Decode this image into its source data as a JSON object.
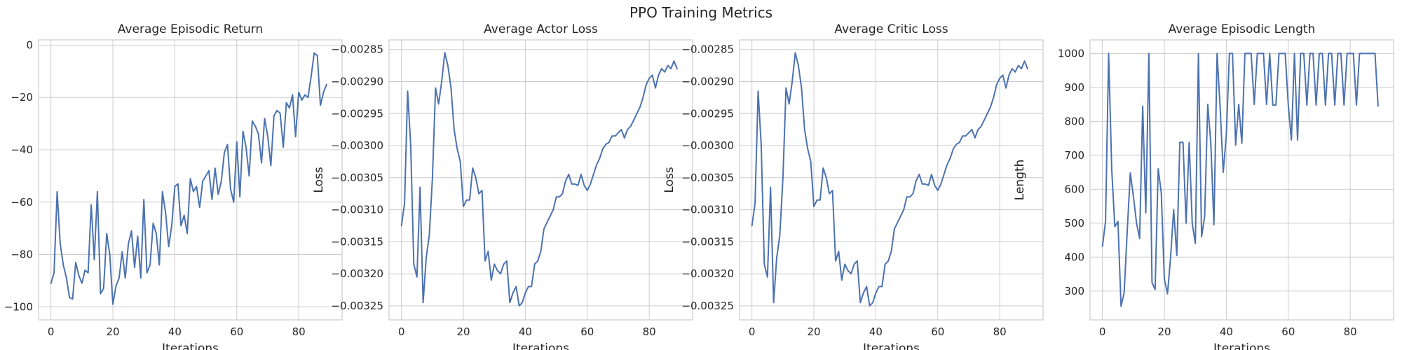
{
  "figure": {
    "title": "PPO Training Metrics"
  },
  "chart_data": [
    {
      "type": "line",
      "title": "Average Episodic Return",
      "xlabel": "Iterations",
      "ylabel": "",
      "xlim": [
        -4,
        94
      ],
      "ylim": [
        -105,
        2
      ],
      "xticks": [
        0,
        20,
        40,
        60,
        80
      ],
      "yticks": [
        0,
        -20,
        -40,
        -60,
        -80,
        -100
      ],
      "grid": true,
      "series": [
        {
          "name": "",
          "color": "#4c72b0",
          "x": [
            0,
            1,
            2,
            3,
            4,
            5,
            6,
            7,
            8,
            9,
            10,
            11,
            12,
            13,
            14,
            15,
            16,
            17,
            18,
            19,
            20,
            21,
            22,
            23,
            24,
            25,
            26,
            27,
            28,
            29,
            30,
            31,
            32,
            33,
            34,
            35,
            36,
            37,
            38,
            39,
            40,
            41,
            42,
            43,
            44,
            45,
            46,
            47,
            48,
            49,
            50,
            51,
            52,
            53,
            54,
            55,
            56,
            57,
            58,
            59,
            60,
            61,
            62,
            63,
            64,
            65,
            66,
            67,
            68,
            69,
            70,
            71,
            72,
            73,
            74,
            75,
            76,
            77,
            78,
            79,
            80,
            81,
            82,
            83,
            84,
            85,
            86,
            87,
            88,
            89
          ],
          "y": [
            -91,
            -87,
            -56,
            -76,
            -84,
            -89,
            -96.5,
            -97,
            -83,
            -88,
            -91,
            -86,
            -87,
            -61,
            -82,
            -56,
            -95,
            -93,
            -72,
            -80,
            -99,
            -92,
            -89,
            -79,
            -89,
            -76,
            -71,
            -85,
            -73,
            -89,
            -59,
            -87,
            -84,
            -68,
            -72,
            -84,
            -56,
            -64,
            -77,
            -69,
            -54,
            -53,
            -69,
            -65,
            -72,
            -51,
            -56,
            -54,
            -62,
            -52,
            -50,
            -48,
            -59,
            -47,
            -57,
            -52,
            -41,
            -38,
            -55,
            -60,
            -37,
            -58,
            -33,
            -39,
            -50,
            -29,
            -31,
            -34,
            -45,
            -28,
            -35,
            -46,
            -27,
            -25,
            -26,
            -39,
            -22,
            -24,
            -19,
            -35,
            -18,
            -21,
            -19,
            -20,
            -12,
            -3,
            -4,
            -23,
            -18,
            -15
          ]
        }
      ]
    },
    {
      "type": "line",
      "title": "Average Actor Loss",
      "xlabel": "Iterations",
      "ylabel": "Loss",
      "xlim": [
        -4,
        94
      ],
      "ylim": [
        -0.003272,
        -0.002835
      ],
      "xticks": [
        0,
        20,
        40,
        60,
        80
      ],
      "yticks": [
        -0.00285,
        -0.0029,
        -0.00295,
        -0.003,
        -0.00305,
        -0.0031,
        -0.00315,
        -0.0032,
        -0.00325
      ],
      "ytick_labels": [
        "−0.00285",
        "−0.00290",
        "−0.00295",
        "−0.00300",
        "−0.00305",
        "−0.00310",
        "−0.00315",
        "−0.00320",
        "−0.00325"
      ],
      "grid": true,
      "series": [
        {
          "name": "",
          "color": "#4c72b0",
          "x": [
            0,
            1,
            2,
            3,
            4,
            5,
            6,
            7,
            8,
            9,
            10,
            11,
            12,
            13,
            14,
            15,
            16,
            17,
            18,
            19,
            20,
            21,
            22,
            23,
            24,
            25,
            26,
            27,
            28,
            29,
            30,
            31,
            32,
            33,
            34,
            35,
            36,
            37,
            38,
            39,
            40,
            41,
            42,
            43,
            44,
            45,
            46,
            47,
            48,
            49,
            50,
            51,
            52,
            53,
            54,
            55,
            56,
            57,
            58,
            59,
            60,
            61,
            62,
            63,
            64,
            65,
            66,
            67,
            68,
            69,
            70,
            71,
            72,
            73,
            74,
            75,
            76,
            77,
            78,
            79,
            80,
            81,
            82,
            83,
            84,
            85,
            86,
            87,
            88,
            89
          ],
          "y": [
            -0.003125,
            -0.00309,
            -0.002915,
            -0.003,
            -0.003185,
            -0.003205,
            -0.003065,
            -0.003245,
            -0.003175,
            -0.00314,
            -0.00305,
            -0.00291,
            -0.002935,
            -0.0029,
            -0.002855,
            -0.002875,
            -0.00291,
            -0.002975,
            -0.003005,
            -0.003025,
            -0.003095,
            -0.003085,
            -0.003085,
            -0.003035,
            -0.00305,
            -0.003075,
            -0.00307,
            -0.00318,
            -0.003165,
            -0.00321,
            -0.003185,
            -0.003195,
            -0.0032,
            -0.003185,
            -0.00318,
            -0.003245,
            -0.00323,
            -0.00322,
            -0.00325,
            -0.003245,
            -0.00323,
            -0.00322,
            -0.00322,
            -0.003185,
            -0.00318,
            -0.003165,
            -0.00313,
            -0.00312,
            -0.00311,
            -0.0031,
            -0.00308,
            -0.00308,
            -0.003075,
            -0.003055,
            -0.003045,
            -0.00306,
            -0.00306,
            -0.003062,
            -0.003045,
            -0.003062,
            -0.00307,
            -0.00306,
            -0.003045,
            -0.00303,
            -0.00302,
            -0.003005,
            -0.002998,
            -0.002995,
            -0.002985,
            -0.002985,
            -0.00298,
            -0.002975,
            -0.002988,
            -0.002975,
            -0.00297,
            -0.00296,
            -0.00295,
            -0.00294,
            -0.002925,
            -0.002905,
            -0.002895,
            -0.00289,
            -0.00291,
            -0.00289,
            -0.00288,
            -0.002885,
            -0.002875,
            -0.00288,
            -0.002868,
            -0.00288
          ]
        }
      ]
    },
    {
      "type": "line",
      "title": "Average Critic Loss",
      "xlabel": "Iterations",
      "ylabel": "Loss",
      "xlim": [
        -4,
        94
      ],
      "ylim": [
        -0.003272,
        -0.002835
      ],
      "xticks": [
        0,
        20,
        40,
        60,
        80
      ],
      "yticks": [
        -0.00285,
        -0.0029,
        -0.00295,
        -0.003,
        -0.00305,
        -0.0031,
        -0.00315,
        -0.0032,
        -0.00325
      ],
      "ytick_labels": [
        "−0.00285",
        "−0.00290",
        "−0.00295",
        "−0.00300",
        "−0.00305",
        "−0.00310",
        "−0.00315",
        "−0.00320",
        "−0.00325"
      ],
      "grid": true,
      "series": [
        {
          "name": "",
          "color": "#4c72b0",
          "x": [
            0,
            1,
            2,
            3,
            4,
            5,
            6,
            7,
            8,
            9,
            10,
            11,
            12,
            13,
            14,
            15,
            16,
            17,
            18,
            19,
            20,
            21,
            22,
            23,
            24,
            25,
            26,
            27,
            28,
            29,
            30,
            31,
            32,
            33,
            34,
            35,
            36,
            37,
            38,
            39,
            40,
            41,
            42,
            43,
            44,
            45,
            46,
            47,
            48,
            49,
            50,
            51,
            52,
            53,
            54,
            55,
            56,
            57,
            58,
            59,
            60,
            61,
            62,
            63,
            64,
            65,
            66,
            67,
            68,
            69,
            70,
            71,
            72,
            73,
            74,
            75,
            76,
            77,
            78,
            79,
            80,
            81,
            82,
            83,
            84,
            85,
            86,
            87,
            88,
            89
          ],
          "y": [
            -0.003125,
            -0.00309,
            -0.002915,
            -0.003,
            -0.003185,
            -0.003205,
            -0.003065,
            -0.003245,
            -0.003175,
            -0.00314,
            -0.00305,
            -0.00291,
            -0.002935,
            -0.0029,
            -0.002855,
            -0.002875,
            -0.00291,
            -0.002975,
            -0.003005,
            -0.003025,
            -0.003095,
            -0.003085,
            -0.003085,
            -0.003035,
            -0.00305,
            -0.003075,
            -0.00307,
            -0.00318,
            -0.003165,
            -0.00321,
            -0.003185,
            -0.003195,
            -0.0032,
            -0.003185,
            -0.00318,
            -0.003245,
            -0.00323,
            -0.00322,
            -0.00325,
            -0.003245,
            -0.00323,
            -0.00322,
            -0.00322,
            -0.003185,
            -0.00318,
            -0.003165,
            -0.00313,
            -0.00312,
            -0.00311,
            -0.0031,
            -0.00308,
            -0.00308,
            -0.003075,
            -0.003055,
            -0.003045,
            -0.00306,
            -0.00306,
            -0.003062,
            -0.003045,
            -0.003062,
            -0.00307,
            -0.00306,
            -0.003045,
            -0.00303,
            -0.00302,
            -0.003005,
            -0.002998,
            -0.002995,
            -0.002985,
            -0.002985,
            -0.00298,
            -0.002975,
            -0.002988,
            -0.002975,
            -0.00297,
            -0.00296,
            -0.00295,
            -0.00294,
            -0.002925,
            -0.002905,
            -0.002895,
            -0.00289,
            -0.00291,
            -0.00289,
            -0.00288,
            -0.002885,
            -0.002875,
            -0.00288,
            -0.002868,
            -0.00288
          ]
        }
      ]
    },
    {
      "type": "line",
      "title": "Average Episodic Length",
      "xlabel": "Iterations",
      "ylabel": "Length",
      "xlim": [
        -4,
        94
      ],
      "ylim": [
        215,
        1040
      ],
      "xticks": [
        0,
        20,
        40,
        60,
        80
      ],
      "yticks": [
        300,
        400,
        500,
        600,
        700,
        800,
        900,
        1000
      ],
      "grid": true,
      "series": [
        {
          "name": "",
          "color": "#4c72b0",
          "x": [
            0,
            1,
            2,
            3,
            4,
            5,
            6,
            7,
            8,
            9,
            10,
            11,
            12,
            13,
            14,
            15,
            16,
            17,
            18,
            19,
            20,
            21,
            22,
            23,
            24,
            25,
            26,
            27,
            28,
            29,
            30,
            31,
            32,
            33,
            34,
            35,
            36,
            37,
            38,
            39,
            40,
            41,
            42,
            43,
            44,
            45,
            46,
            47,
            48,
            49,
            50,
            51,
            52,
            53,
            54,
            55,
            56,
            57,
            58,
            59,
            60,
            61,
            62,
            63,
            64,
            65,
            66,
            67,
            68,
            69,
            70,
            71,
            72,
            73,
            74,
            75,
            76,
            77,
            78,
            79,
            80,
            81,
            82,
            83,
            84,
            85,
            86,
            87,
            88,
            89
          ],
          "y": [
            432,
            505,
            1000,
            660,
            490,
            505,
            255,
            295,
            475,
            648,
            578,
            500,
            455,
            845,
            530,
            1000,
            325,
            305,
            660,
            590,
            335,
            292,
            400,
            540,
            405,
            738,
            738,
            500,
            738,
            498,
            440,
            1000,
            460,
            520,
            850,
            735,
            495,
            1000,
            840,
            650,
            760,
            1000,
            1000,
            730,
            850,
            735,
            1000,
            1000,
            1000,
            850,
            1000,
            1000,
            1000,
            850,
            1000,
            848,
            848,
            1000,
            1000,
            1000,
            848,
            745,
            1000,
            745,
            1000,
            1000,
            848,
            1000,
            1000,
            848,
            1000,
            1000,
            848,
            1000,
            1000,
            848,
            1000,
            1000,
            848,
            1000,
            1000,
            1000,
            848,
            1000,
            1000,
            1000,
            1000,
            1000,
            1000,
            845
          ]
        }
      ]
    }
  ]
}
